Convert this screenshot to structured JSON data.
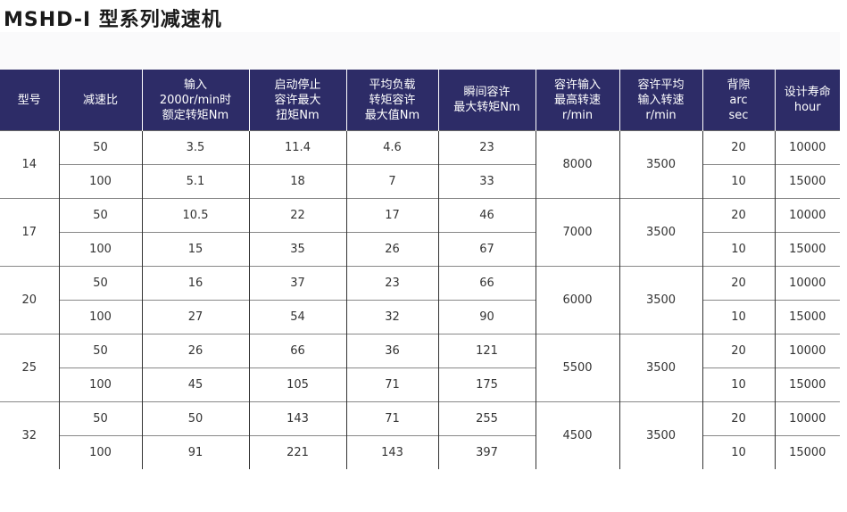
{
  "title": "MSHD-I 型系列减速机",
  "headers": [
    [
      "型号"
    ],
    [
      "减速比"
    ],
    [
      "输入",
      "2000r/min时",
      "额定转矩Nm"
    ],
    [
      "启动停止",
      "容许最大",
      "扭矩Nm"
    ],
    [
      "平均负载",
      "转矩容许",
      "最大值Nm"
    ],
    [
      "瞬间容许",
      "最大转矩Nm"
    ],
    [
      "容许输入",
      "最高转速",
      "r/min"
    ],
    [
      "容许平均",
      "输入转速",
      "r/min"
    ],
    [
      "背隙",
      "arc",
      "sec"
    ],
    [
      "设计寿命",
      "hour"
    ]
  ],
  "models": [
    {
      "model": "14",
      "max_speed": "8000",
      "avg_speed": "3500",
      "rows": [
        {
          "ratio": "50",
          "rated": "3.5",
          "startstop": "11.4",
          "avgload": "4.6",
          "instant": "23",
          "backlash": "20",
          "life": "10000"
        },
        {
          "ratio": "100",
          "rated": "5.1",
          "startstop": "18",
          "avgload": "7",
          "instant": "33",
          "backlash": "10",
          "life": "15000"
        }
      ]
    },
    {
      "model": "17",
      "max_speed": "7000",
      "avg_speed": "3500",
      "rows": [
        {
          "ratio": "50",
          "rated": "10.5",
          "startstop": "22",
          "avgload": "17",
          "instant": "46",
          "backlash": "20",
          "life": "10000"
        },
        {
          "ratio": "100",
          "rated": "15",
          "startstop": "35",
          "avgload": "26",
          "instant": "67",
          "backlash": "10",
          "life": "15000"
        }
      ]
    },
    {
      "model": "20",
      "max_speed": "6000",
      "avg_speed": "3500",
      "rows": [
        {
          "ratio": "50",
          "rated": "16",
          "startstop": "37",
          "avgload": "23",
          "instant": "66",
          "backlash": "20",
          "life": "10000"
        },
        {
          "ratio": "100",
          "rated": "27",
          "startstop": "54",
          "avgload": "32",
          "instant": "90",
          "backlash": "10",
          "life": "15000"
        }
      ]
    },
    {
      "model": "25",
      "max_speed": "5500",
      "avg_speed": "3500",
      "rows": [
        {
          "ratio": "50",
          "rated": "26",
          "startstop": "66",
          "avgload": "36",
          "instant": "121",
          "backlash": "20",
          "life": "10000"
        },
        {
          "ratio": "100",
          "rated": "45",
          "startstop": "105",
          "avgload": "71",
          "instant": "175",
          "backlash": "10",
          "life": "15000"
        }
      ]
    },
    {
      "model": "32",
      "max_speed": "4500",
      "avg_speed": "3500",
      "rows": [
        {
          "ratio": "50",
          "rated": "50",
          "startstop": "143",
          "avgload": "71",
          "instant": "255",
          "backlash": "20",
          "life": "10000"
        },
        {
          "ratio": "100",
          "rated": "91",
          "startstop": "221",
          "avgload": "143",
          "instant": "397",
          "backlash": "10",
          "life": "15000"
        }
      ]
    }
  ]
}
